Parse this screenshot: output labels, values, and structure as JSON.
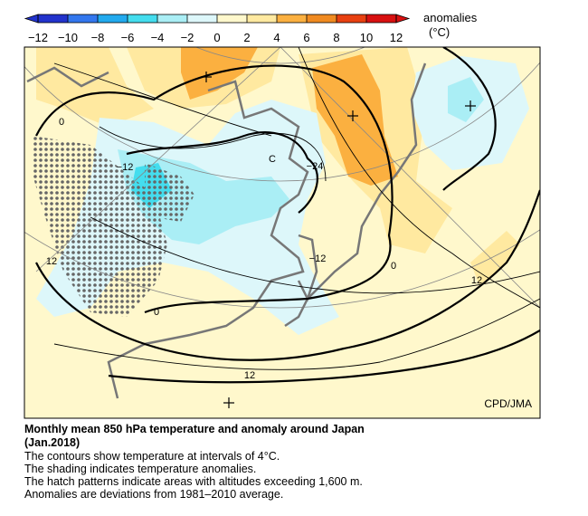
{
  "colorbar": {
    "label": "anomalies",
    "unit": "(°C)",
    "ticks": [
      {
        "value": -12,
        "label": "−12"
      },
      {
        "value": -10,
        "label": "−10"
      },
      {
        "value": -8,
        "label": "−8"
      },
      {
        "value": -6,
        "label": "−6"
      },
      {
        "value": -4,
        "label": "−4"
      },
      {
        "value": -2,
        "label": "−2"
      },
      0,
      2,
      4,
      6,
      8,
      10,
      12
    ],
    "colors": [
      "#2233cc",
      "#3377ee",
      "#22aaee",
      "#44ddee",
      "#aaeef5",
      "#ddf7fa",
      "#fff8cc",
      "#ffe9a0",
      "#fbb040",
      "#f08a20",
      "#e84010",
      "#d81010"
    ]
  },
  "map": {
    "center_label": "C",
    "contour_labels": [
      "0",
      "−12",
      "−24",
      "12",
      "−12",
      "0",
      "12",
      "0",
      "12"
    ],
    "credit": "CPD/JMA"
  },
  "caption": {
    "title": "Monthly mean 850 hPa temperature and anomaly around Japan",
    "date": "(Jan.2018)",
    "lines": [
      "The contours show temperature at intervals of 4°C.",
      "The shading indicates temperature anomalies.",
      "The hatch patterns indicate areas with altitudes exceeding 1,600 m.",
      "Anomalies are deviations from 1981–2010 average."
    ]
  }
}
